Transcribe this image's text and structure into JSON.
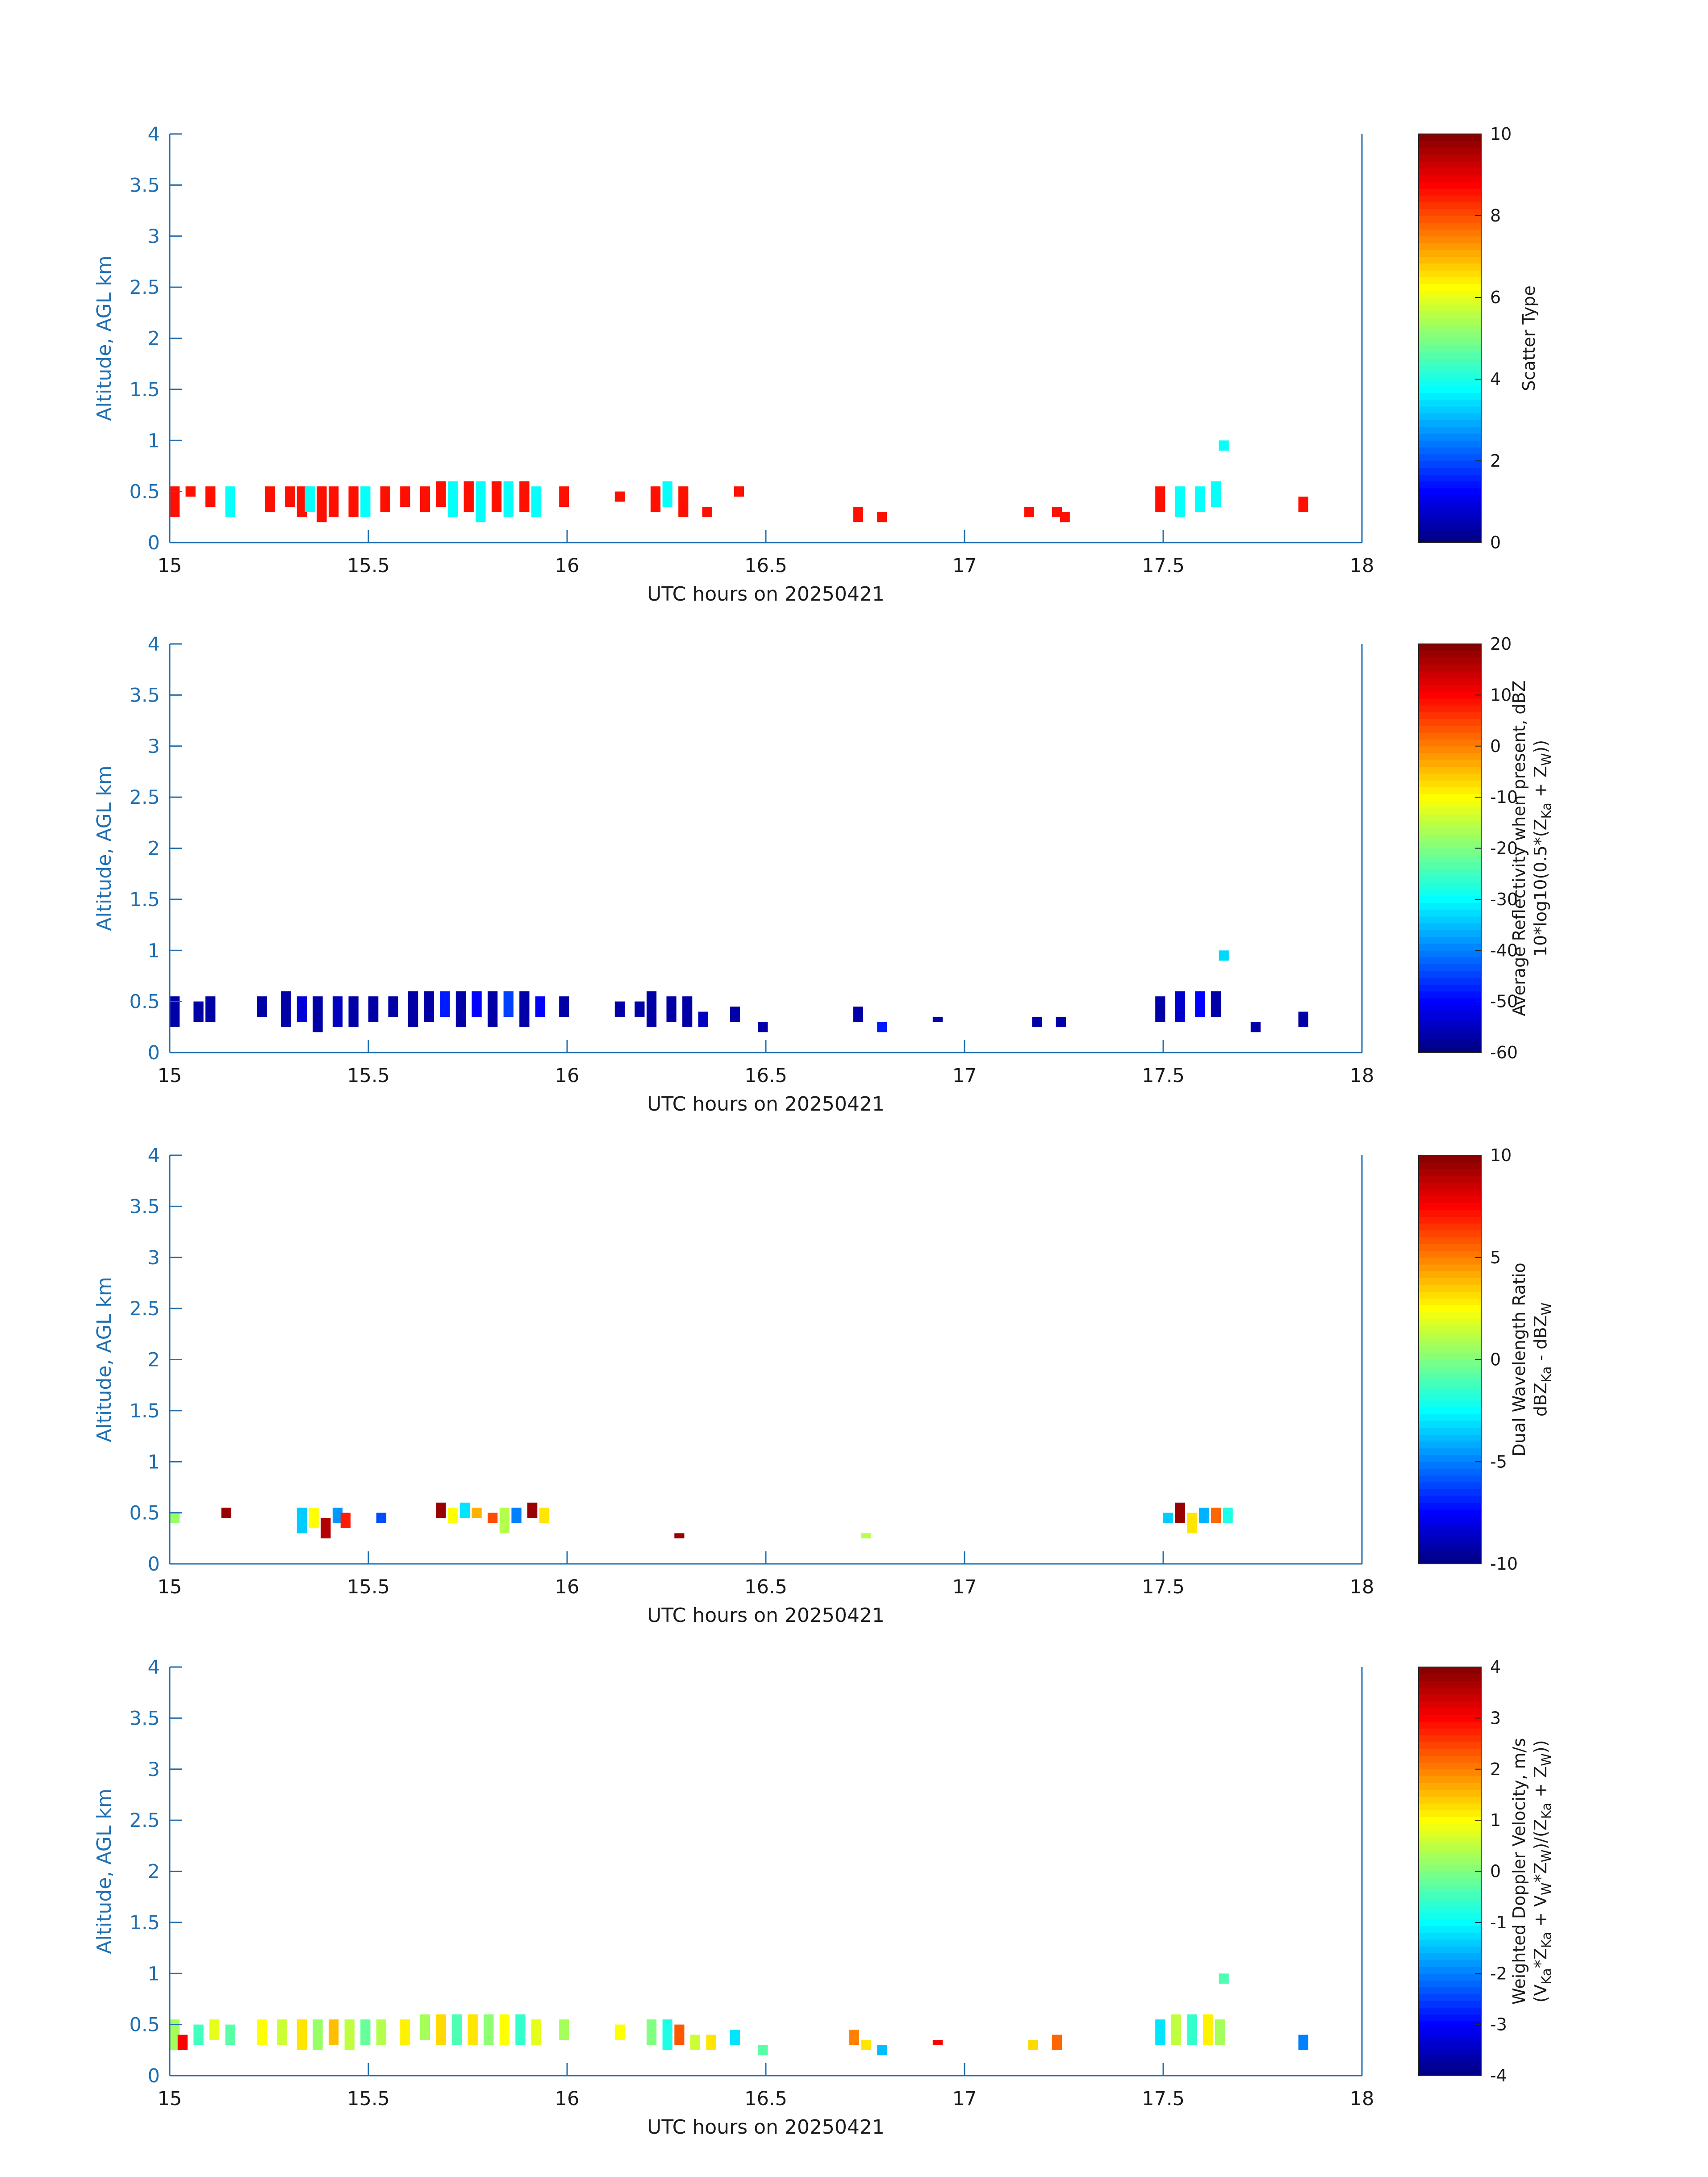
{
  "chart_data": [
    {
      "type": "heatmap",
      "xlabel": "UTC hours on 20250421",
      "ylabel": "Altitude, AGL km",
      "xlim": [
        15,
        18
      ],
      "ylim": [
        0,
        4
      ],
      "xticks": [
        "15",
        "15.5",
        "16",
        "16.5",
        "17",
        "17.5",
        "18"
      ],
      "yticks": [
        "0",
        "0.5",
        "1",
        "1.5",
        "2",
        "2.5",
        "3",
        "3.5",
        "4"
      ],
      "colorbar": {
        "label_lines": [
          "Scatter Type"
        ],
        "range": [
          0,
          10
        ],
        "ticks": [
          "0",
          "2",
          "4",
          "6",
          "8",
          "10"
        ],
        "colormap": "jet"
      },
      "cells": [
        [
          15.0,
          0.25,
          0.3,
          8.6
        ],
        [
          15.04,
          0.45,
          0.1,
          8.6
        ],
        [
          15.09,
          0.35,
          0.2,
          8.6
        ],
        [
          15.14,
          0.25,
          0.3,
          3.8
        ],
        [
          15.24,
          0.3,
          0.25,
          8.6
        ],
        [
          15.29,
          0.35,
          0.2,
          8.6
        ],
        [
          15.32,
          0.25,
          0.3,
          8.6
        ],
        [
          15.34,
          0.3,
          0.25,
          3.8
        ],
        [
          15.37,
          0.2,
          0.35,
          8.6
        ],
        [
          15.4,
          0.25,
          0.3,
          8.6
        ],
        [
          15.45,
          0.25,
          0.3,
          8.6
        ],
        [
          15.48,
          0.25,
          0.3,
          3.8
        ],
        [
          15.53,
          0.3,
          0.25,
          8.6
        ],
        [
          15.58,
          0.35,
          0.2,
          8.6
        ],
        [
          15.63,
          0.3,
          0.25,
          8.6
        ],
        [
          15.67,
          0.35,
          0.25,
          8.6
        ],
        [
          15.7,
          0.25,
          0.35,
          3.8
        ],
        [
          15.74,
          0.3,
          0.3,
          8.6
        ],
        [
          15.77,
          0.2,
          0.4,
          3.8
        ],
        [
          15.81,
          0.3,
          0.3,
          8.6
        ],
        [
          15.84,
          0.25,
          0.35,
          3.8
        ],
        [
          15.88,
          0.3,
          0.3,
          8.6
        ],
        [
          15.91,
          0.25,
          0.3,
          3.8
        ],
        [
          15.98,
          0.35,
          0.2,
          8.6
        ],
        [
          16.12,
          0.4,
          0.1,
          8.6
        ],
        [
          16.21,
          0.3,
          0.25,
          8.6
        ],
        [
          16.24,
          0.35,
          0.25,
          3.8
        ],
        [
          16.28,
          0.25,
          0.3,
          8.6
        ],
        [
          16.34,
          0.25,
          0.1,
          8.6
        ],
        [
          16.42,
          0.45,
          0.1,
          8.6
        ],
        [
          16.72,
          0.2,
          0.15,
          8.6
        ],
        [
          16.78,
          0.2,
          0.1,
          8.6
        ],
        [
          17.15,
          0.25,
          0.1,
          8.6
        ],
        [
          17.22,
          0.25,
          0.1,
          8.6
        ],
        [
          17.24,
          0.2,
          0.1,
          8.6
        ],
        [
          17.48,
          0.3,
          0.25,
          8.6
        ],
        [
          17.53,
          0.25,
          0.3,
          3.8
        ],
        [
          17.58,
          0.3,
          0.25,
          3.8
        ],
        [
          17.62,
          0.35,
          0.25,
          3.8
        ],
        [
          17.64,
          0.9,
          0.1,
          3.8
        ],
        [
          17.84,
          0.3,
          0.15,
          8.6
        ]
      ]
    },
    {
      "type": "heatmap",
      "xlabel": "UTC hours on 20250421",
      "ylabel": "Altitude, AGL km",
      "xlim": [
        15,
        18
      ],
      "ylim": [
        0,
        4
      ],
      "xticks": [
        "15",
        "15.5",
        "16",
        "16.5",
        "17",
        "17.5",
        "18"
      ],
      "yticks": [
        "0",
        "0.5",
        "1",
        "1.5",
        "2",
        "2.5",
        "3",
        "3.5",
        "4"
      ],
      "colorbar": {
        "label_lines": [
          "Average Reflectivity when present, dBZ",
          "10*log10(0.5*(Z",
          "Ka",
          " + Z",
          "W",
          "))"
        ],
        "range": [
          -60,
          20
        ],
        "ticks": [
          "-60",
          "-50",
          "-40",
          "-30",
          "-20",
          "-10",
          "0",
          "10",
          "20"
        ],
        "colormap": "jet"
      },
      "cells": [
        [
          15.0,
          0.25,
          0.3,
          -57
        ],
        [
          15.06,
          0.3,
          0.2,
          -57
        ],
        [
          15.09,
          0.3,
          0.25,
          -57
        ],
        [
          15.22,
          0.35,
          0.2,
          -57
        ],
        [
          15.28,
          0.25,
          0.35,
          -57
        ],
        [
          15.32,
          0.3,
          0.25,
          -53
        ],
        [
          15.36,
          0.2,
          0.35,
          -57
        ],
        [
          15.41,
          0.25,
          0.3,
          -55
        ],
        [
          15.45,
          0.25,
          0.3,
          -57
        ],
        [
          15.5,
          0.3,
          0.25,
          -57
        ],
        [
          15.55,
          0.35,
          0.2,
          -57
        ],
        [
          15.6,
          0.25,
          0.35,
          -57
        ],
        [
          15.64,
          0.3,
          0.3,
          -57
        ],
        [
          15.68,
          0.35,
          0.25,
          -48
        ],
        [
          15.72,
          0.25,
          0.35,
          -57
        ],
        [
          15.76,
          0.35,
          0.25,
          -50
        ],
        [
          15.8,
          0.25,
          0.35,
          -57
        ],
        [
          15.84,
          0.35,
          0.25,
          -45
        ],
        [
          15.88,
          0.25,
          0.35,
          -57
        ],
        [
          15.92,
          0.35,
          0.2,
          -50
        ],
        [
          15.98,
          0.35,
          0.2,
          -57
        ],
        [
          16.12,
          0.35,
          0.15,
          -57
        ],
        [
          16.17,
          0.35,
          0.15,
          -57
        ],
        [
          16.2,
          0.25,
          0.35,
          -57
        ],
        [
          16.25,
          0.3,
          0.25,
          -57
        ],
        [
          16.29,
          0.25,
          0.3,
          -57
        ],
        [
          16.33,
          0.25,
          0.15,
          -55
        ],
        [
          16.41,
          0.3,
          0.15,
          -57
        ],
        [
          16.48,
          0.2,
          0.1,
          -57
        ],
        [
          16.72,
          0.3,
          0.15,
          -57
        ],
        [
          16.78,
          0.2,
          0.1,
          -48
        ],
        [
          16.92,
          0.3,
          0.05,
          -57
        ],
        [
          17.17,
          0.25,
          0.1,
          -57
        ],
        [
          17.23,
          0.25,
          0.1,
          -57
        ],
        [
          17.48,
          0.3,
          0.25,
          -57
        ],
        [
          17.53,
          0.3,
          0.3,
          -54
        ],
        [
          17.58,
          0.35,
          0.25,
          -50
        ],
        [
          17.62,
          0.35,
          0.25,
          -57
        ],
        [
          17.64,
          0.9,
          0.1,
          -33
        ],
        [
          17.72,
          0.2,
          0.1,
          -57
        ],
        [
          17.84,
          0.25,
          0.15,
          -57
        ]
      ]
    },
    {
      "type": "heatmap",
      "xlabel": "UTC hours on 20250421",
      "ylabel": "Altitude, AGL km",
      "xlim": [
        15,
        18
      ],
      "ylim": [
        0,
        4
      ],
      "xticks": [
        "15",
        "15.5",
        "16",
        "16.5",
        "17",
        "17.5",
        "18"
      ],
      "yticks": [
        "0",
        "0.5",
        "1",
        "1.5",
        "2",
        "2.5",
        "3",
        "3.5",
        "4"
      ],
      "colorbar": {
        "label_lines": [
          "Dual Wavelength Ratio",
          "dBZ",
          "Ka",
          " - dBZ",
          "W"
        ],
        "range": [
          -10,
          10
        ],
        "ticks": [
          "-10",
          "-5",
          "0",
          "5",
          "10"
        ],
        "colormap": "jet"
      },
      "cells": [
        [
          15.0,
          0.4,
          0.1,
          0.5
        ],
        [
          15.13,
          0.45,
          0.1,
          9.5
        ],
        [
          15.32,
          0.3,
          0.25,
          -3.5
        ],
        [
          15.35,
          0.35,
          0.2,
          2.5
        ],
        [
          15.38,
          0.25,
          0.2,
          9.0
        ],
        [
          15.41,
          0.4,
          0.15,
          -4.5
        ],
        [
          15.43,
          0.35,
          0.15,
          7.0
        ],
        [
          15.52,
          0.4,
          0.1,
          -6.0
        ],
        [
          15.67,
          0.45,
          0.15,
          9.5
        ],
        [
          15.7,
          0.4,
          0.15,
          2.5
        ],
        [
          15.73,
          0.45,
          0.15,
          -3.0
        ],
        [
          15.76,
          0.45,
          0.1,
          4.0
        ],
        [
          15.8,
          0.4,
          0.1,
          6.0
        ],
        [
          15.83,
          0.3,
          0.25,
          1.0
        ],
        [
          15.86,
          0.4,
          0.15,
          -5.0
        ],
        [
          15.9,
          0.45,
          0.15,
          9.5
        ],
        [
          15.93,
          0.4,
          0.15,
          3.0
        ],
        [
          16.27,
          0.25,
          0.05,
          9.5
        ],
        [
          16.74,
          0.25,
          0.05,
          1.0
        ],
        [
          17.5,
          0.4,
          0.1,
          -3.5
        ],
        [
          17.53,
          0.4,
          0.2,
          9.5
        ],
        [
          17.56,
          0.3,
          0.2,
          3.0
        ],
        [
          17.59,
          0.4,
          0.15,
          -4.0
        ],
        [
          17.62,
          0.4,
          0.15,
          5.5
        ],
        [
          17.65,
          0.4,
          0.15,
          -2.0
        ]
      ]
    },
    {
      "type": "heatmap",
      "xlabel": "UTC hours on 20250421",
      "ylabel": "Altitude, AGL km",
      "xlim": [
        15,
        18
      ],
      "ylim": [
        0,
        4
      ],
      "xticks": [
        "15",
        "15.5",
        "16",
        "16.5",
        "17",
        "17.5",
        "18"
      ],
      "yticks": [
        "0",
        "0.5",
        "1",
        "1.5",
        "2",
        "2.5",
        "3",
        "3.5",
        "4"
      ],
      "colorbar": {
        "label_lines": [
          "Weighted Doppler Velocity, m/s",
          "(V",
          "Ka",
          "*Z",
          "Ka",
          " + V",
          "W",
          "*Z",
          "W",
          ")/(Z",
          "Ka",
          " + Z",
          "W",
          "))"
        ],
        "range": [
          -4,
          4
        ],
        "ticks": [
          "-4",
          "-3",
          "-2",
          "-1",
          "0",
          "1",
          "2",
          "3",
          "4"
        ],
        "colormap": "jet"
      },
      "cells": [
        [
          15.0,
          0.25,
          0.3,
          0.3
        ],
        [
          15.02,
          0.25,
          0.15,
          3.0
        ],
        [
          15.06,
          0.3,
          0.2,
          -0.5
        ],
        [
          15.1,
          0.35,
          0.2,
          0.8
        ],
        [
          15.14,
          0.3,
          0.2,
          -0.3
        ],
        [
          15.22,
          0.3,
          0.25,
          1.0
        ],
        [
          15.27,
          0.3,
          0.25,
          0.6
        ],
        [
          15.32,
          0.25,
          0.3,
          1.2
        ],
        [
          15.36,
          0.25,
          0.3,
          0.2
        ],
        [
          15.4,
          0.3,
          0.25,
          1.5
        ],
        [
          15.44,
          0.25,
          0.3,
          0.5
        ],
        [
          15.48,
          0.3,
          0.25,
          -0.2
        ],
        [
          15.52,
          0.3,
          0.25,
          0.4
        ],
        [
          15.58,
          0.3,
          0.25,
          1.1
        ],
        [
          15.63,
          0.35,
          0.25,
          0.3
        ],
        [
          15.67,
          0.3,
          0.3,
          1.3
        ],
        [
          15.71,
          0.3,
          0.3,
          -0.4
        ],
        [
          15.75,
          0.3,
          0.3,
          1.2
        ],
        [
          15.79,
          0.3,
          0.3,
          0.1
        ],
        [
          15.83,
          0.3,
          0.3,
          1.0
        ],
        [
          15.87,
          0.3,
          0.3,
          -0.6
        ],
        [
          15.91,
          0.3,
          0.25,
          0.8
        ],
        [
          15.98,
          0.35,
          0.2,
          0.3
        ],
        [
          16.12,
          0.35,
          0.15,
          1.0
        ],
        [
          16.2,
          0.3,
          0.25,
          0.0
        ],
        [
          16.24,
          0.25,
          0.3,
          -0.8
        ],
        [
          16.27,
          0.3,
          0.2,
          2.3
        ],
        [
          16.31,
          0.25,
          0.15,
          0.6
        ],
        [
          16.35,
          0.25,
          0.15,
          1.2
        ],
        [
          16.41,
          0.3,
          0.15,
          -1.2
        ],
        [
          16.48,
          0.2,
          0.1,
          -0.3
        ],
        [
          16.71,
          0.3,
          0.15,
          2.0
        ],
        [
          16.74,
          0.25,
          0.1,
          1.2
        ],
        [
          16.78,
          0.2,
          0.1,
          -1.5
        ],
        [
          16.92,
          0.3,
          0.05,
          3.0
        ],
        [
          17.16,
          0.25,
          0.1,
          1.3
        ],
        [
          17.22,
          0.25,
          0.15,
          2.2
        ],
        [
          17.48,
          0.3,
          0.25,
          -1.2
        ],
        [
          17.52,
          0.3,
          0.3,
          0.5
        ],
        [
          17.56,
          0.3,
          0.3,
          -0.6
        ],
        [
          17.6,
          0.3,
          0.3,
          1.1
        ],
        [
          17.63,
          0.3,
          0.25,
          0.3
        ],
        [
          17.64,
          0.9,
          0.1,
          -0.4
        ],
        [
          17.84,
          0.25,
          0.15,
          -2.0
        ]
      ]
    }
  ]
}
